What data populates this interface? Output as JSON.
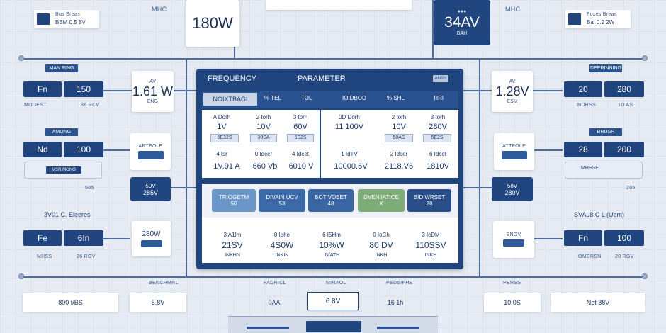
{
  "top": {
    "left_title": "MHC",
    "right_title": "MHC",
    "left_gauge": {
      "value": "180W"
    },
    "right_gauge": {
      "value": "34AV",
      "sub": "BAH"
    },
    "left_chip": {
      "label": "Bus Breas",
      "value": "BBM 0.5 8V"
    },
    "right_chip": {
      "label": "Foxes Breas",
      "value": "Bal 0.2 2W"
    }
  },
  "left": {
    "tag1": "MAN RING",
    "row1": {
      "a": "Fn",
      "b": "150",
      "label": "MODEST",
      "val": "36 RCV"
    },
    "gauge1": {
      "top": "AV",
      "value": "1.61 W",
      "sub": "ENG"
    },
    "tag2": "AMONG",
    "row2": {
      "a": "Nd",
      "b": "100"
    },
    "mini1": {
      "label": "ARTFOLE"
    },
    "card1": {
      "top": "50V",
      "value": "285V"
    },
    "row2_label": "MSN MONO",
    "row2_val": "505",
    "note": "3V01 C. Eleeres",
    "row3": {
      "a": "Fe",
      "b": "6In",
      "label": "MHSS",
      "val": "26 RGV"
    },
    "mini2": {
      "value": "280W"
    }
  },
  "right": {
    "tag1": "DEERINNING",
    "row1": {
      "a": "20",
      "b": "280",
      "label": "8IDRSS",
      "val": "1D AS"
    },
    "gauge1": {
      "top": "AV",
      "value": "1.28V",
      "sub": "ESM"
    },
    "tag2": "BRUSH",
    "row2": {
      "a": "28",
      "b": "200"
    },
    "mini1": {
      "label": "ATTFOLE"
    },
    "card1": {
      "top": "58V",
      "value": "280V"
    },
    "row2_label": "MHSSE",
    "row2_val": "205",
    "note": "SVAL8 C L (Uem)",
    "row3": {
      "a": "Fn",
      "b": "100",
      "label": "OMERSN",
      "val": "20 RGV"
    },
    "mini2": {
      "label": "ENGV"
    }
  },
  "panel": {
    "title_left": "FREQUENCY",
    "title_right": "PARAMETER",
    "chip": "ANSN",
    "tabs": [
      "NOIXTBAGI",
      "% TEL",
      "TOL",
      "IOIDBOD",
      "% SHL",
      "TIRI"
    ],
    "grid": {
      "col1": {
        "head": "A Dorh",
        "value": "1V",
        "chip": "5E32S",
        "sub": "4 Isr",
        "bottom": "1V.91 A"
      },
      "col2": {
        "head": "2 torh",
        "value": "10V",
        "chip": "30SA",
        "sub": "0 Idcer",
        "bottom": "660 Vb"
      },
      "col3": {
        "head": "3 torh",
        "value": "60V",
        "chip": "5E2S",
        "sub": "4 Idcet",
        "bottom": "6010 V"
      },
      "col4": {
        "head": "0D Dorh",
        "value": "11 100V",
        "chip": "",
        "sub": "1 IdTV",
        "bottom": "10000.6V"
      },
      "col5": {
        "head": "2 torh",
        "value": "10V",
        "chip": "50AS",
        "sub": "2 Idcer",
        "bottom": "2118.V6"
      },
      "col6": {
        "head": "3 torh",
        "value": "280V",
        "chip": "5E2S",
        "sub": "6 Idcet",
        "bottom": "1810V"
      }
    },
    "cards": [
      {
        "title": "TRIOGETM",
        "value": "50",
        "color": "#6b96c8"
      },
      {
        "title": "DIVAIN UCV",
        "value": "53",
        "color": "#3c6aa8"
      },
      {
        "title": "BOT VOBET",
        "value": "48",
        "color": "#3a66a3"
      },
      {
        "title": "DVEN IATICE",
        "value": "X",
        "color": "#7fad7a"
      },
      {
        "title": "BID WRSET",
        "value": "28",
        "color": "#2a4f88"
      }
    ],
    "readouts": [
      {
        "head": "3 A1Im",
        "value": "21SV",
        "foot": "INKHN"
      },
      {
        "head": "0 Idhe",
        "value": "4S0W",
        "foot": "INKIN"
      },
      {
        "head": "6 I5Hm",
        "value": "10%W",
        "foot": "IN/ATH"
      },
      {
        "head": "0 IoCh",
        "value": "80 DV",
        "foot": "INKH"
      },
      {
        "head": "3 IcDM",
        "value": "110SSV",
        "foot": "INKH"
      }
    ]
  },
  "bottom": {
    "b1": "800 t/BS",
    "b2": "5.8V",
    "b3": "0AA",
    "b4": "6.8V",
    "b5": "16 1h",
    "b6": "10.0S",
    "b7": "Net 88V",
    "l2": "BENCHMRL",
    "l3": "FADRICL",
    "l4": "MIRAOL",
    "l5": "PEDSIPHE",
    "l6": "PERSS"
  }
}
